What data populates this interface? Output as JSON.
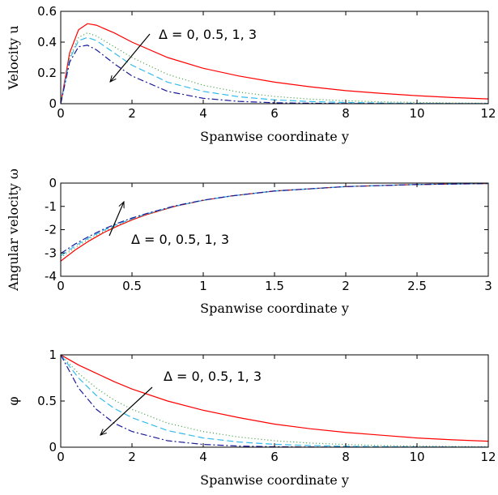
{
  "chart_data": [
    {
      "type": "line",
      "id": "velocity",
      "xlabel": "Spanwise coordinate y",
      "ylabel": "Velocity u",
      "xlim": [
        0,
        12
      ],
      "ylim": [
        0,
        0.6
      ],
      "xticks": [
        "0",
        "2",
        "4",
        "6",
        "8",
        "10",
        "12"
      ],
      "yticks": [
        "0",
        "0.2",
        "0.4",
        "0.6"
      ],
      "grid": false,
      "annotation": "Δ = 0, 0.5, 1, 3",
      "series": [
        {
          "color": "#ff0000",
          "dash": "solid",
          "x": [
            0,
            0.25,
            0.5,
            0.75,
            1,
            1.5,
            2,
            3,
            4,
            5,
            6,
            7,
            8,
            9,
            10,
            11,
            12
          ],
          "y": [
            0,
            0.33,
            0.48,
            0.52,
            0.51,
            0.46,
            0.4,
            0.3,
            0.23,
            0.18,
            0.14,
            0.11,
            0.085,
            0.067,
            0.052,
            0.04,
            0.031
          ]
        },
        {
          "color": "#339933",
          "dash": "1,3",
          "x": [
            0,
            0.25,
            0.5,
            0.75,
            1,
            1.5,
            2,
            3,
            4,
            5,
            6,
            7,
            8,
            9,
            10,
            11,
            12
          ],
          "y": [
            0,
            0.3,
            0.43,
            0.46,
            0.44,
            0.37,
            0.3,
            0.19,
            0.12,
            0.075,
            0.047,
            0.03,
            0.019,
            0.012,
            0.008,
            0.005,
            0.003
          ]
        },
        {
          "color": "#33bbee",
          "dash": "8,4",
          "x": [
            0,
            0.25,
            0.5,
            0.75,
            1,
            1.5,
            2,
            3,
            4,
            5,
            6,
            7,
            8,
            9,
            10,
            11,
            12
          ],
          "y": [
            0,
            0.29,
            0.41,
            0.43,
            0.41,
            0.33,
            0.25,
            0.14,
            0.08,
            0.045,
            0.025,
            0.014,
            0.008,
            0.004,
            0.002,
            0.001,
            0.0006
          ]
        },
        {
          "color": "#1a1a99",
          "dash": "8,3,2,3",
          "x": [
            0,
            0.25,
            0.5,
            0.75,
            1,
            1.5,
            2,
            3,
            4,
            5,
            6,
            7,
            8,
            9,
            10,
            11,
            12
          ],
          "y": [
            0,
            0.27,
            0.37,
            0.38,
            0.35,
            0.26,
            0.18,
            0.08,
            0.035,
            0.015,
            0.006,
            0.003,
            0.001,
            0.0005,
            0.0002,
            0.0001,
            0
          ]
        }
      ]
    },
    {
      "type": "line",
      "id": "angular",
      "xlabel": "Spanwise coordinate y",
      "ylabel": "Angular velocity ω",
      "xlim": [
        0,
        3
      ],
      "ylim": [
        -4,
        0
      ],
      "xticks": [
        "0",
        "0.5",
        "1",
        "1.5",
        "2",
        "2.5",
        "3"
      ],
      "yticks": [
        "-4",
        "-3",
        "-2",
        "-1",
        "0"
      ],
      "grid": false,
      "annotation": "Δ = 0, 0.5, 1, 3",
      "series": [
        {
          "color": "#ff0000",
          "dash": "solid",
          "x": [
            0,
            0.1,
            0.2,
            0.3,
            0.4,
            0.5,
            0.6,
            0.8,
            1,
            1.2,
            1.5,
            2,
            2.5,
            3
          ],
          "y": [
            -3.35,
            -2.88,
            -2.48,
            -2.13,
            -1.84,
            -1.58,
            -1.36,
            -1.0,
            -0.74,
            -0.55,
            -0.34,
            -0.15,
            -0.06,
            -0.02
          ]
        },
        {
          "color": "#339933",
          "dash": "1,3",
          "x": [
            0,
            0.1,
            0.2,
            0.3,
            0.4,
            0.5,
            0.6,
            0.8,
            1,
            1.2,
            1.5,
            2,
            2.5,
            3
          ],
          "y": [
            -3.2,
            -2.77,
            -2.4,
            -2.08,
            -1.8,
            -1.56,
            -1.35,
            -1.0,
            -0.74,
            -0.55,
            -0.34,
            -0.15,
            -0.06,
            -0.02
          ]
        },
        {
          "color": "#33bbee",
          "dash": "8,4",
          "x": [
            0,
            0.1,
            0.2,
            0.3,
            0.4,
            0.5,
            0.6,
            0.8,
            1,
            1.2,
            1.5,
            2,
            2.5,
            3
          ],
          "y": [
            -3.12,
            -2.7,
            -2.34,
            -2.03,
            -1.76,
            -1.53,
            -1.33,
            -0.99,
            -0.74,
            -0.55,
            -0.34,
            -0.15,
            -0.06,
            -0.02
          ]
        },
        {
          "color": "#1a1a99",
          "dash": "8,3,2,3",
          "x": [
            0,
            0.1,
            0.2,
            0.3,
            0.4,
            0.5,
            0.6,
            0.8,
            1,
            1.2,
            1.5,
            2,
            2.5,
            3
          ],
          "y": [
            -3.02,
            -2.62,
            -2.28,
            -1.98,
            -1.72,
            -1.5,
            -1.31,
            -0.98,
            -0.73,
            -0.55,
            -0.34,
            -0.15,
            -0.06,
            -0.02
          ]
        }
      ]
    },
    {
      "type": "line",
      "id": "phi",
      "xlabel": "Spanwise coordinate y",
      "ylabel": "φ",
      "xlim": [
        0,
        12
      ],
      "ylim": [
        0,
        1
      ],
      "xticks": [
        "0",
        "2",
        "4",
        "6",
        "8",
        "10",
        "12"
      ],
      "yticks": [
        "0",
        "0.5",
        "1"
      ],
      "grid": false,
      "annotation": "Δ = 0, 0.5, 1, 3",
      "series": [
        {
          "color": "#ff0000",
          "dash": "solid",
          "x": [
            0,
            0.5,
            1,
            1.5,
            2,
            3,
            4,
            5,
            6,
            7,
            8,
            9,
            10,
            11,
            12
          ],
          "y": [
            1,
            0.89,
            0.8,
            0.71,
            0.63,
            0.5,
            0.4,
            0.32,
            0.25,
            0.2,
            0.16,
            0.13,
            0.1,
            0.08,
            0.065
          ]
        },
        {
          "color": "#339933",
          "dash": "1,3",
          "x": [
            0,
            0.5,
            1,
            1.5,
            2,
            3,
            4,
            5,
            6,
            7,
            8,
            9,
            10,
            11,
            12
          ],
          "y": [
            1,
            0.8,
            0.64,
            0.51,
            0.41,
            0.26,
            0.17,
            0.11,
            0.07,
            0.045,
            0.029,
            0.018,
            0.012,
            0.008,
            0.005
          ]
        },
        {
          "color": "#33bbee",
          "dash": "8,4",
          "x": [
            0,
            0.5,
            1,
            1.5,
            2,
            3,
            4,
            5,
            6,
            7,
            8,
            9,
            10,
            11,
            12
          ],
          "y": [
            1,
            0.75,
            0.56,
            0.42,
            0.32,
            0.18,
            0.1,
            0.056,
            0.031,
            0.018,
            0.01,
            0.006,
            0.003,
            0.002,
            0.001
          ]
        },
        {
          "color": "#1a1a99",
          "dash": "8,3,2,3",
          "x": [
            0,
            0.5,
            1,
            1.5,
            2,
            3,
            4,
            5,
            6,
            7,
            8,
            9,
            10,
            11,
            12
          ],
          "y": [
            1,
            0.64,
            0.41,
            0.26,
            0.17,
            0.07,
            0.03,
            0.012,
            0.005,
            0.002,
            0.001,
            0.0004,
            0.0002,
            0.0001,
            0
          ]
        }
      ]
    }
  ]
}
